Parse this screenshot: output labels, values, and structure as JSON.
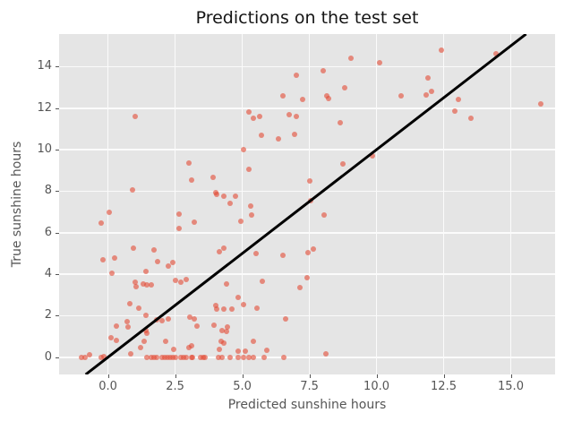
{
  "colors": {
    "figure_background": "#ffffff",
    "plot_background": "#e5e5e5",
    "gridline": "#fbfbfb",
    "marker_color": "#e24a33",
    "marker_alpha": 0.6,
    "line_color": "#000000",
    "tick_text": "#555555",
    "title_text": "#141414"
  },
  "chart_data": {
    "type": "scatter",
    "title": "Predictions on the test set",
    "xlabel": "Predicted sunshine hours",
    "ylabel": "True sunshine hours",
    "xlim": [
      -1.82,
      16.65
    ],
    "ylim": [
      -0.83,
      15.57
    ],
    "grid": true,
    "legend": "none",
    "x_tick_values": [
      0,
      2.5,
      5,
      7.5,
      10,
      12.5,
      15
    ],
    "x_tick_labels": [
      "0.0",
      "2.5",
      "5.0",
      "7.5",
      "10.0",
      "12.5",
      "15.0"
    ],
    "y_tick_values": [
      0,
      2,
      4,
      6,
      8,
      10,
      12,
      14
    ],
    "y_tick_labels": [
      "0",
      "2",
      "4",
      "6",
      "8",
      "10",
      "12",
      "14"
    ],
    "identity_line": {
      "slope": 1,
      "intercept": 0
    },
    "marker_size_px": 6,
    "points": [
      [
        1.0,
        11.6
      ],
      [
        9.05,
        14.4
      ],
      [
        10.1,
        14.2
      ],
      [
        8.0,
        13.8
      ],
      [
        7.0,
        13.6
      ],
      [
        8.8,
        13.0
      ],
      [
        8.15,
        12.6
      ],
      [
        8.2,
        12.45
      ],
      [
        6.5,
        12.6
      ],
      [
        7.25,
        12.4
      ],
      [
        5.25,
        11.8
      ],
      [
        5.4,
        11.5
      ],
      [
        5.65,
        11.6
      ],
      [
        6.75,
        11.7
      ],
      [
        7.0,
        11.6
      ],
      [
        8.65,
        11.3
      ],
      [
        5.7,
        10.7
      ],
      [
        6.35,
        10.5
      ],
      [
        6.95,
        10.75
      ],
      [
        12.4,
        14.8
      ],
      [
        14.45,
        14.6
      ],
      [
        11.9,
        13.45
      ],
      [
        10.9,
        12.6
      ],
      [
        11.85,
        12.65
      ],
      [
        12.05,
        12.8
      ],
      [
        13.05,
        12.4
      ],
      [
        12.9,
        11.85
      ],
      [
        13.5,
        11.5
      ],
      [
        16.1,
        12.2
      ],
      [
        5.05,
        10.0
      ],
      [
        9.85,
        9.7
      ],
      [
        5.25,
        9.05
      ],
      [
        8.75,
        9.3
      ],
      [
        3.0,
        9.35
      ],
      [
        3.1,
        8.55
      ],
      [
        3.9,
        8.65
      ],
      [
        0.9,
        8.05
      ],
      [
        7.5,
        8.5
      ],
      [
        4.0,
        7.95
      ],
      [
        4.05,
        7.85
      ],
      [
        4.3,
        7.75
      ],
      [
        0.05,
        7.0
      ],
      [
        -0.25,
        6.45
      ],
      [
        2.65,
        6.9
      ],
      [
        3.2,
        6.5
      ],
      [
        2.65,
        6.2
      ],
      [
        7.55,
        7.55
      ],
      [
        4.75,
        7.75
      ],
      [
        4.55,
        7.4
      ],
      [
        5.3,
        7.3
      ],
      [
        5.35,
        6.85
      ],
      [
        4.95,
        6.55
      ],
      [
        8.05,
        6.85
      ],
      [
        0.95,
        5.25
      ],
      [
        1.7,
        5.15
      ],
      [
        -0.2,
        4.7
      ],
      [
        0.25,
        4.8
      ],
      [
        4.15,
        5.1
      ],
      [
        4.3,
        5.25
      ],
      [
        7.45,
        5.05
      ],
      [
        7.65,
        5.2
      ],
      [
        5.5,
        5.0
      ],
      [
        6.5,
        4.9
      ],
      [
        1.85,
        4.6
      ],
      [
        2.25,
        4.4
      ],
      [
        2.4,
        4.55
      ],
      [
        0.15,
        4.05
      ],
      [
        1.4,
        4.15
      ],
      [
        5.75,
        3.65
      ],
      [
        7.15,
        3.35
      ],
      [
        7.4,
        3.85
      ],
      [
        4.4,
        3.55
      ],
      [
        1.0,
        3.6
      ],
      [
        1.05,
        3.4
      ],
      [
        1.3,
        3.55
      ],
      [
        1.45,
        3.5
      ],
      [
        1.6,
        3.5
      ],
      [
        2.5,
        3.7
      ],
      [
        2.7,
        3.6
      ],
      [
        2.9,
        3.75
      ],
      [
        4.85,
        2.9
      ],
      [
        5.05,
        2.55
      ],
      [
        4.05,
        2.3
      ],
      [
        4.3,
        2.3
      ],
      [
        4.6,
        2.3
      ],
      [
        5.55,
        2.35
      ],
      [
        0.8,
        2.6
      ],
      [
        1.15,
        2.35
      ],
      [
        4.0,
        2.5
      ],
      [
        1.4,
        2.0
      ],
      [
        1.8,
        1.8
      ],
      [
        2.0,
        1.75
      ],
      [
        2.25,
        1.85
      ],
      [
        3.05,
        1.95
      ],
      [
        3.2,
        1.85
      ],
      [
        6.6,
        1.85
      ],
      [
        0.3,
        1.5
      ],
      [
        0.7,
        1.7
      ],
      [
        0.75,
        1.45
      ],
      [
        1.4,
        1.3
      ],
      [
        1.45,
        1.15
      ],
      [
        3.3,
        1.5
      ],
      [
        3.95,
        1.55
      ],
      [
        4.45,
        1.45
      ],
      [
        4.4,
        1.25
      ],
      [
        4.25,
        1.3
      ],
      [
        0.1,
        0.95
      ],
      [
        0.3,
        0.8
      ],
      [
        1.35,
        0.75
      ],
      [
        2.15,
        0.75
      ],
      [
        4.2,
        0.75
      ],
      [
        4.3,
        0.7
      ],
      [
        3.1,
        0.55
      ],
      [
        1.2,
        0.45
      ],
      [
        2.45,
        0.4
      ],
      [
        3.0,
        0.45
      ],
      [
        4.15,
        0.4
      ],
      [
        4.85,
        0.3
      ],
      [
        5.1,
        0.3
      ],
      [
        5.4,
        0.75
      ],
      [
        5.9,
        0.35
      ],
      [
        8.1,
        0.15
      ],
      [
        0.85,
        0.15
      ],
      [
        -1.0,
        0
      ],
      [
        -0.85,
        0
      ],
      [
        -0.7,
        0.1
      ],
      [
        -0.25,
        0
      ],
      [
        -0.15,
        0.05
      ],
      [
        1.45,
        0
      ],
      [
        1.6,
        0
      ],
      [
        1.7,
        0
      ],
      [
        1.8,
        0
      ],
      [
        2.0,
        0
      ],
      [
        2.1,
        0
      ],
      [
        2.2,
        0
      ],
      [
        2.3,
        0
      ],
      [
        2.4,
        0
      ],
      [
        2.5,
        0
      ],
      [
        2.7,
        0
      ],
      [
        2.8,
        0
      ],
      [
        2.9,
        0
      ],
      [
        3.1,
        0
      ],
      [
        3.15,
        0
      ],
      [
        3.45,
        0
      ],
      [
        3.55,
        0
      ],
      [
        3.6,
        0
      ],
      [
        4.1,
        0
      ],
      [
        4.25,
        0
      ],
      [
        4.55,
        0
      ],
      [
        4.85,
        0
      ],
      [
        5.05,
        0
      ],
      [
        5.25,
        0
      ],
      [
        5.4,
        0
      ],
      [
        5.8,
        0
      ],
      [
        6.55,
        0
      ]
    ]
  }
}
